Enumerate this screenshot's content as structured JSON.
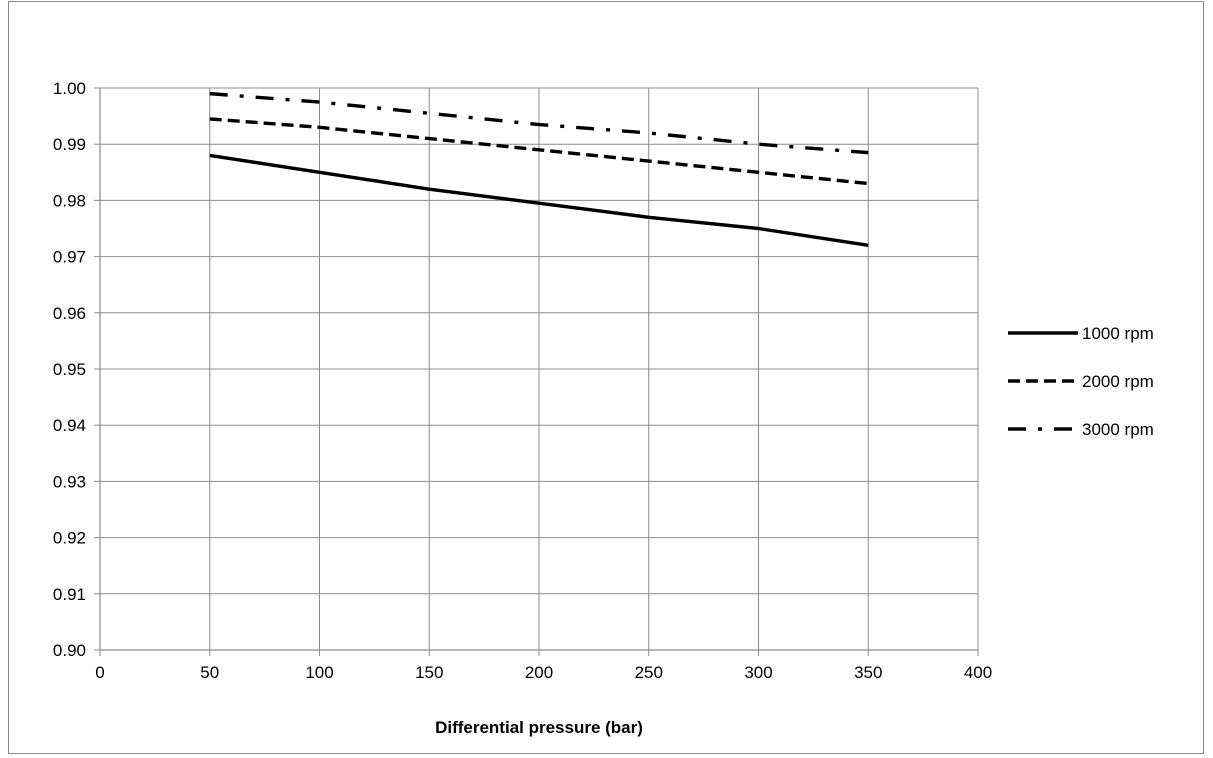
{
  "chart_data": {
    "type": "line",
    "title": "",
    "xlabel": "Differential pressure (bar)",
    "ylabel": "",
    "xlim": [
      0,
      400
    ],
    "ylim": [
      0.9,
      1.0
    ],
    "x_ticks": [
      "0",
      "50",
      "100",
      "150",
      "200",
      "250",
      "300",
      "350",
      "400"
    ],
    "y_ticks": [
      "0.90",
      "0.91",
      "0.92",
      "0.93",
      "0.94",
      "0.95",
      "0.96",
      "0.97",
      "0.98",
      "0.99",
      "1.00"
    ],
    "grid": true,
    "legend_position": "right",
    "series": [
      {
        "name": "1000 rpm",
        "style": "solid",
        "x": [
          50,
          100,
          150,
          200,
          250,
          300,
          350
        ],
        "y": [
          0.988,
          0.985,
          0.982,
          0.9795,
          0.977,
          0.975,
          0.972
        ]
      },
      {
        "name": "2000 rpm",
        "style": "dashed",
        "x": [
          50,
          100,
          150,
          200,
          250,
          300,
          350
        ],
        "y": [
          0.9945,
          0.993,
          0.991,
          0.989,
          0.987,
          0.985,
          0.983
        ]
      },
      {
        "name": "3000 rpm",
        "style": "dash-dot",
        "x": [
          50,
          100,
          150,
          200,
          250,
          300,
          350
        ],
        "y": [
          0.999,
          0.9975,
          0.9955,
          0.9935,
          0.992,
          0.99,
          0.9885
        ]
      }
    ]
  }
}
